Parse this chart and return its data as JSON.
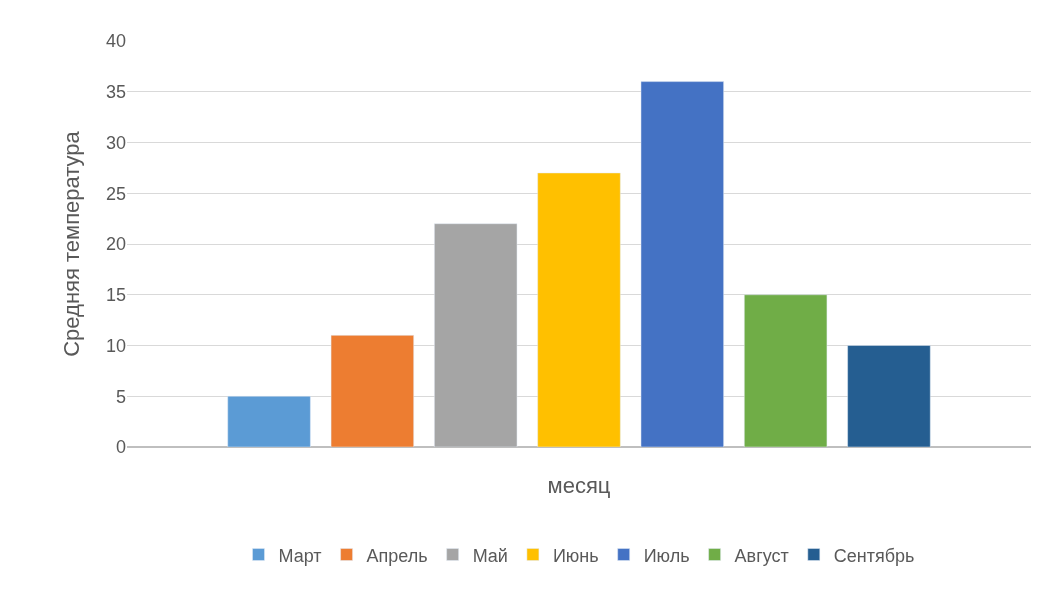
{
  "chart_data": {
    "type": "bar",
    "xlabel": "месяц",
    "ylabel": "Средняя температура",
    "categories": [
      null
    ],
    "series": [
      {
        "name": "Март",
        "color": "#5b9bd5",
        "values": [
          5
        ]
      },
      {
        "name": "Апрель",
        "color": "#ed7d31",
        "values": [
          11
        ]
      },
      {
        "name": "Май",
        "color": "#a5a5a5",
        "values": [
          22
        ]
      },
      {
        "name": "Июнь",
        "color": "#ffc000",
        "values": [
          27
        ]
      },
      {
        "name": "Июль",
        "color": "#4472c4",
        "values": [
          36
        ]
      },
      {
        "name": "Август",
        "color": "#70ad47",
        "values": [
          15
        ]
      },
      {
        "name": "Сентябрь",
        "color": "#255e91",
        "values": [
          10
        ]
      }
    ],
    "ylim": [
      0,
      40
    ],
    "yticks": [
      0,
      5,
      10,
      15,
      20,
      25,
      30,
      35,
      40
    ],
    "grid": "y",
    "legend": "bottom",
    "tick_labels": "y"
  }
}
